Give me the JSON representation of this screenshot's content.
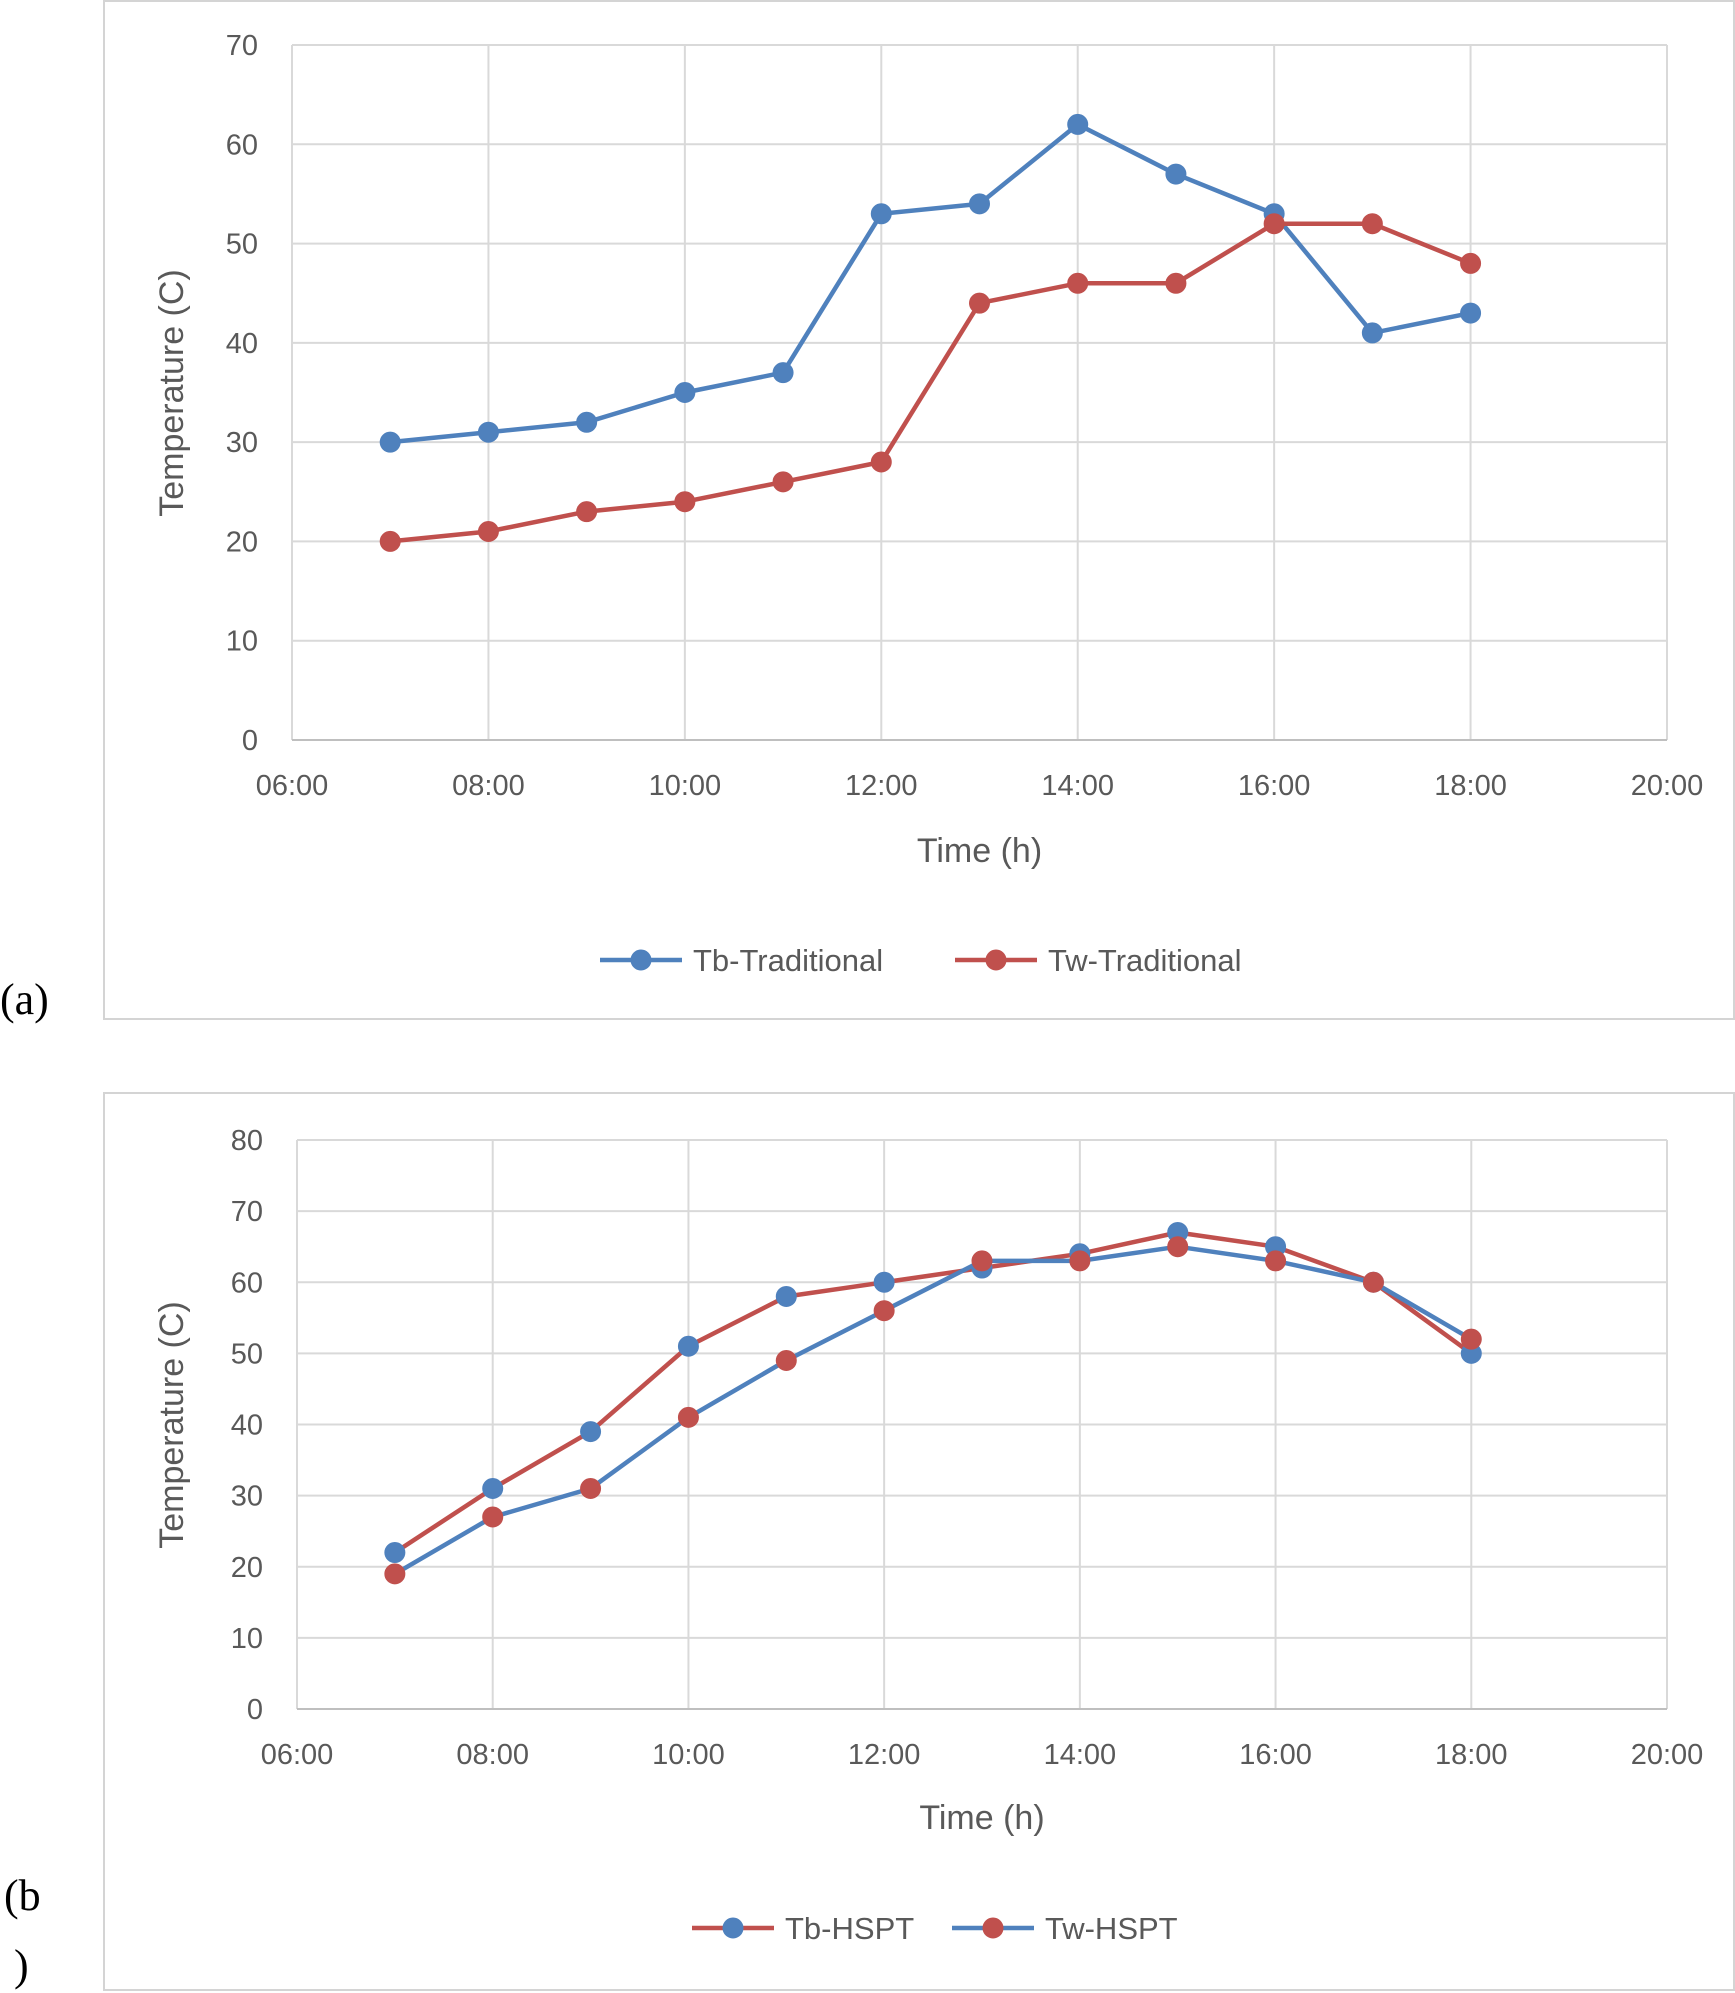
{
  "panels": {
    "a": {
      "label": "(a)"
    },
    "b": {
      "label_line1": "(b",
      "label_line2": ")"
    }
  },
  "colors": {
    "blue": "#4f81bd",
    "red": "#c0504d",
    "grid": "#d9d9d9",
    "axis": "#bfbfbf",
    "text": "#595959"
  },
  "chart_data": [
    {
      "type": "line",
      "title": "",
      "xlabel": "Time (h)",
      "ylabel": "Temperature (C)",
      "xlim": [
        "06:00",
        "20:00"
      ],
      "ylim": [
        0,
        70
      ],
      "ytick_step": 10,
      "xticks": [
        "06:00",
        "08:00",
        "10:00",
        "12:00",
        "14:00",
        "16:00",
        "18:00",
        "20:00"
      ],
      "x": [
        "07:00",
        "08:00",
        "09:00",
        "10:00",
        "11:00",
        "12:00",
        "13:00",
        "14:00",
        "15:00",
        "16:00",
        "17:00",
        "18:00"
      ],
      "grid": true,
      "legend_position": "bottom",
      "series": [
        {
          "name": "Tb-Traditional",
          "line_color": "#4f81bd",
          "marker_color": "#4f81bd",
          "values": [
            30,
            31,
            32,
            35,
            37,
            53,
            54,
            62,
            57,
            53,
            41,
            43
          ]
        },
        {
          "name": "Tw-Traditional",
          "line_color": "#c0504d",
          "marker_color": "#c0504d",
          "values": [
            20,
            21,
            23,
            24,
            26,
            28,
            44,
            46,
            46,
            52,
            52,
            48
          ]
        }
      ]
    },
    {
      "type": "line",
      "title": "",
      "xlabel": "Time (h)",
      "ylabel": "Temperature (C)",
      "xlim": [
        "06:00",
        "20:00"
      ],
      "ylim": [
        0,
        80
      ],
      "ytick_step": 10,
      "xticks": [
        "06:00",
        "08:00",
        "10:00",
        "12:00",
        "14:00",
        "16:00",
        "18:00",
        "20:00"
      ],
      "x": [
        "07:00",
        "08:00",
        "09:00",
        "10:00",
        "11:00",
        "12:00",
        "13:00",
        "14:00",
        "15:00",
        "16:00",
        "17:00",
        "18:00"
      ],
      "grid": true,
      "legend_position": "bottom",
      "series": [
        {
          "name": "Tb-HSPT",
          "line_color": "#c0504d",
          "marker_color": "#4f81bd",
          "values": [
            22,
            31,
            39,
            51,
            58,
            60,
            62,
            64,
            67,
            65,
            60,
            50
          ]
        },
        {
          "name": "Tw-HSPT",
          "line_color": "#4f81bd",
          "marker_color": "#c0504d",
          "values": [
            19,
            27,
            31,
            41,
            49,
            56,
            63,
            63,
            65,
            63,
            60,
            52
          ]
        }
      ]
    }
  ]
}
